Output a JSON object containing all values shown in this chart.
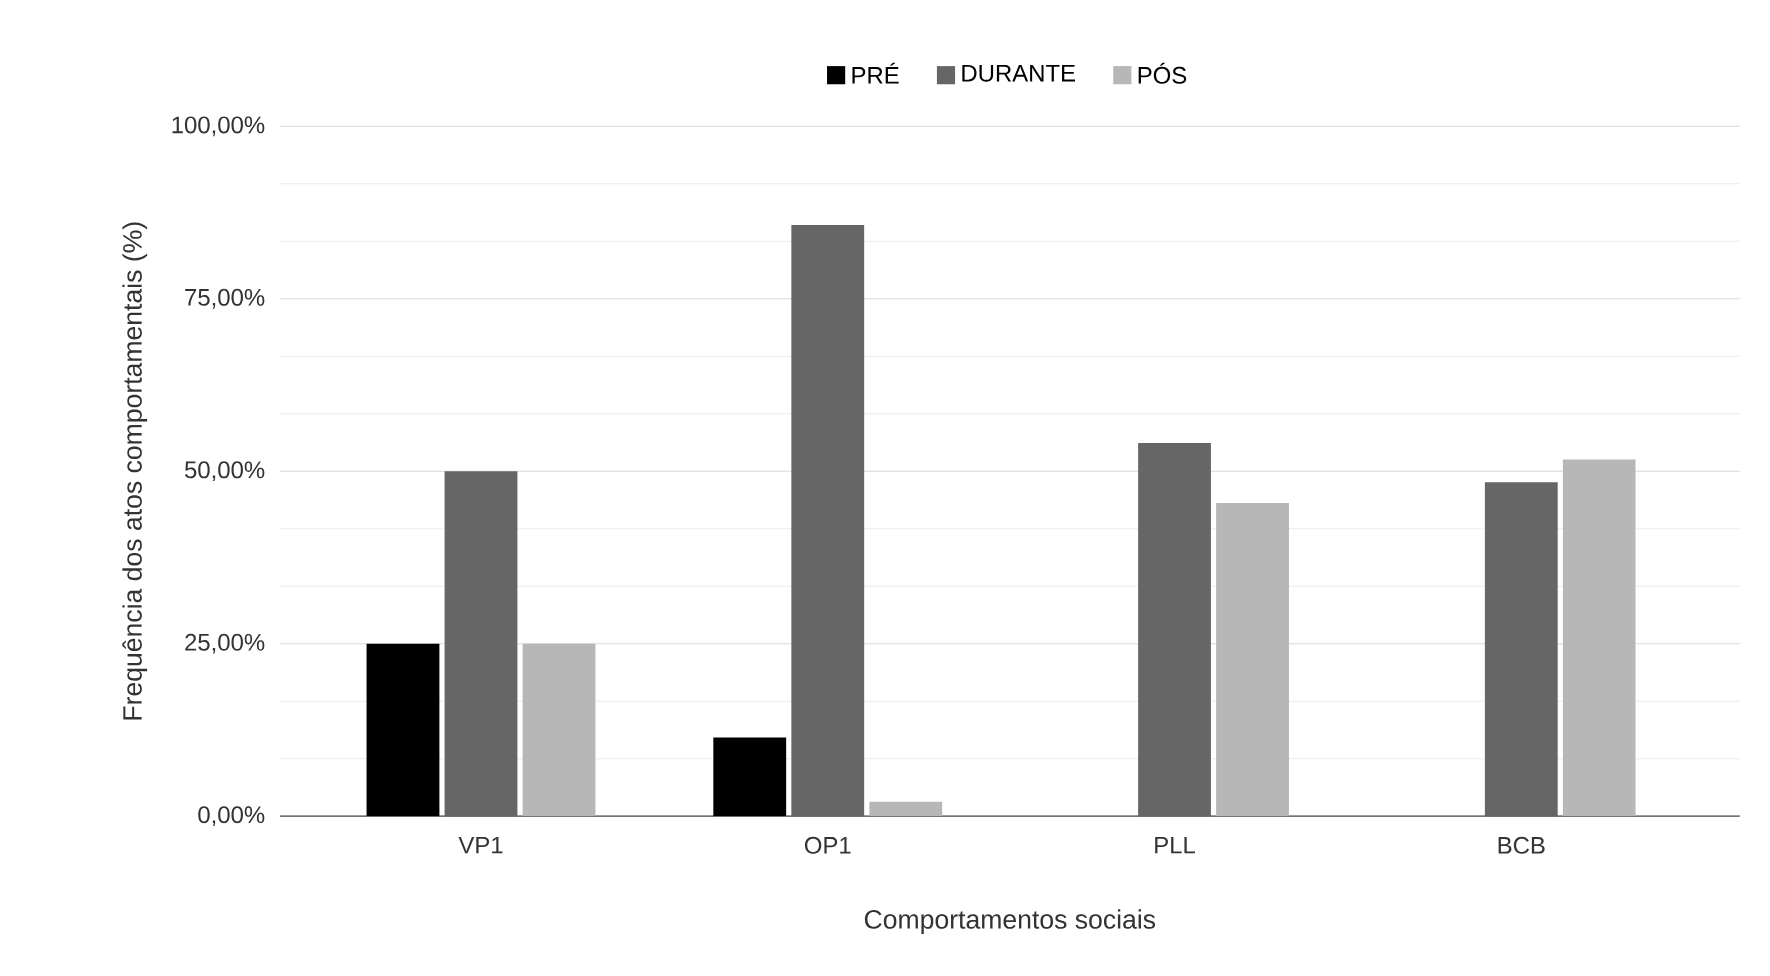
{
  "chart_data": {
    "type": "bar",
    "categories": [
      "VP1",
      "OP1",
      "PLL",
      "BCB"
    ],
    "series": [
      {
        "name": "PRÉ",
        "color": "#000000",
        "values": [
          25,
          11.4,
          0,
          0
        ]
      },
      {
        "name": "DURANTE",
        "color": "#666666",
        "values": [
          50,
          85.7,
          54.1,
          48.4
        ]
      },
      {
        "name": "PÓS",
        "color": "#b7b7b7",
        "values": [
          25,
          2.1,
          45.4,
          51.7
        ]
      }
    ],
    "xlabel": "Comportamentos sociais",
    "ylabel": "Frequência dos atos comportamentais (%)",
    "ylim": [
      0,
      100
    ],
    "yticks": [
      {
        "value": 0,
        "label": "0,00%"
      },
      {
        "value": 25,
        "label": "25,00%"
      },
      {
        "value": 50,
        "label": "50,00%"
      },
      {
        "value": 75,
        "label": "75,00%"
      },
      {
        "value": 100,
        "label": "100,00%"
      }
    ],
    "grid": "y",
    "legend": "top"
  }
}
